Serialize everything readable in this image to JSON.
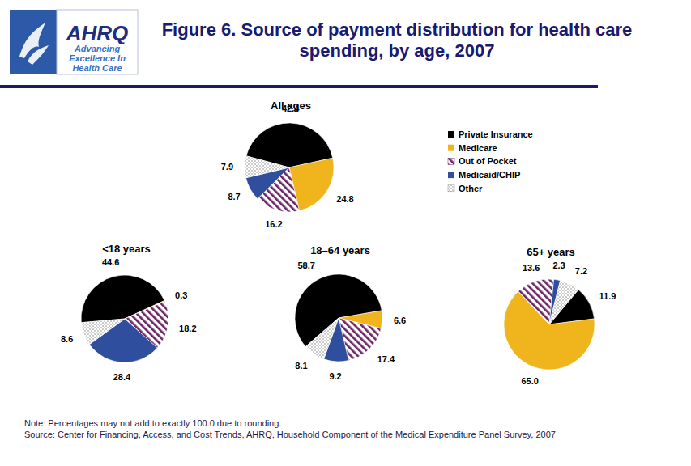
{
  "title": "Figure 6. Source of payment distribution for health care spending, by age, 2007",
  "logo": {
    "name": "AHRQ",
    "tagline": [
      "Advancing",
      "Excellence In",
      "Health Care"
    ]
  },
  "chart_data": [
    {
      "type": "pie",
      "title": "All ages",
      "categories": [
        "Private Insurance",
        "Medicare",
        "Out of Pocket",
        "Medicaid/CHIP",
        "Other"
      ],
      "values": [
        42.4,
        24.8,
        16.2,
        8.7,
        7.9
      ],
      "colors": [
        "#000000",
        "#f0b41c",
        "#6b2466",
        "#2f4f9e",
        "#8c8c8c"
      ],
      "data_labels": true,
      "legend": "top-right"
    },
    {
      "type": "pie",
      "title": "<18 years",
      "categories": [
        "Private Insurance",
        "Medicare",
        "Out of Pocket",
        "Medicaid/CHIP",
        "Other"
      ],
      "values": [
        44.6,
        0.3,
        18.2,
        28.4,
        8.6
      ],
      "colors": [
        "#000000",
        "#f0b41c",
        "#6b2466",
        "#2f4f9e",
        "#8c8c8c"
      ],
      "data_labels": true
    },
    {
      "type": "pie",
      "title": "18–64 years",
      "categories": [
        "Private Insurance",
        "Medicare",
        "Out of Pocket",
        "Medicaid/CHIP",
        "Other"
      ],
      "values": [
        58.7,
        6.6,
        17.4,
        9.2,
        8.1
      ],
      "colors": [
        "#000000",
        "#f0b41c",
        "#6b2466",
        "#2f4f9e",
        "#8c8c8c"
      ],
      "data_labels": true
    },
    {
      "type": "pie",
      "title": "65+ years",
      "categories": [
        "Private Insurance",
        "Medicare",
        "Out of Pocket",
        "Medicaid/CHIP",
        "Other"
      ],
      "values": [
        11.9,
        65.0,
        13.6,
        2.3,
        7.2
      ],
      "value_labels": [
        "11.9",
        "65.0",
        "13.6",
        "2.3",
        "7.2"
      ],
      "colors": [
        "#000000",
        "#f0b41c",
        "#6b2466",
        "#2f4f9e",
        "#8c8c8c"
      ],
      "data_labels": true
    }
  ],
  "notes": [
    "Note: Percentages may not add to exactly 100.0 due to rounding.",
    "Source: Center for Financing, Access, and Cost Trends, AHRQ, Household Component of the Medical Expenditure Panel Survey, 2007"
  ]
}
